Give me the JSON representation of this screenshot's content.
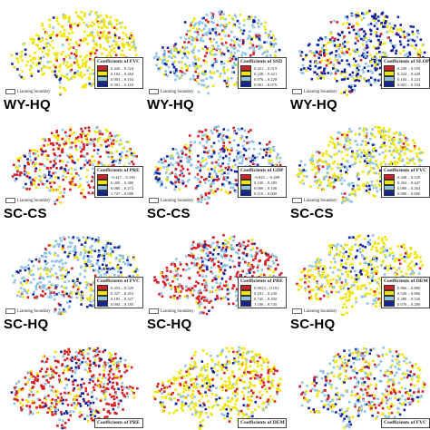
{
  "colors": {
    "red": "#d81f26",
    "yellow": "#f2e600",
    "lightblue": "#8fc3e4",
    "darkblue": "#12239e",
    "background": "#ffffff"
  },
  "boundary_label": "Liaoning boundary",
  "rows": [
    {
      "label": "",
      "panels": [
        {
          "legend_title": "Coefficients of FVC",
          "dominant": "yellow",
          "mix": {
            "red": 0.08,
            "yellow": 0.72,
            "lightblue": 0.12,
            "darkblue": 0.08
          },
          "legend": [
            {
              "color": "red",
              "text": "0.426 – 0.524"
            },
            {
              "color": "yellow",
              "text": "0.104 – 0.264"
            },
            {
              "color": "lightblue",
              "text": "0.003 – 0.104"
            },
            {
              "color": "darkblue",
              "text": "0.301 – 0.103"
            }
          ]
        },
        {
          "legend_title": "Coefficients of SSD",
          "dominant": "lightblue",
          "mix": {
            "red": 0.12,
            "yellow": 0.22,
            "lightblue": 0.48,
            "darkblue": 0.18
          },
          "legend": [
            {
              "color": "red",
              "text": "0.421 – 0.519"
            },
            {
              "color": "yellow",
              "text": "0.228 – 0.421"
            },
            {
              "color": "lightblue",
              "text": "0.076 – 0.228"
            },
            {
              "color": "darkblue",
              "text": "0.001 – 0.076"
            }
          ]
        },
        {
          "legend_title": "Coefficients of SLOP",
          "dominant": "darkblue",
          "mix": {
            "red": 0.06,
            "yellow": 0.22,
            "lightblue": 0.22,
            "darkblue": 0.5
          },
          "legend": [
            {
              "color": "red",
              "text": "0.449 – 0.559"
            },
            {
              "color": "yellow",
              "text": "0.224 – 0.449"
            },
            {
              "color": "lightblue",
              "text": "0.104 – 0.224"
            },
            {
              "color": "darkblue",
              "text": "0.001 – 0.104"
            }
          ]
        }
      ]
    },
    {
      "label": "WY-HQ",
      "panels": [
        {
          "legend_title": "Coefficients of PRE",
          "dominant": "red",
          "mix": {
            "red": 0.42,
            "yellow": 0.3,
            "lightblue": 0.24,
            "darkblue": 0.04
          },
          "legend": [
            {
              "color": "red",
              "text": "-0.447 – 0.190"
            },
            {
              "color": "yellow",
              "text": "0.209 – 0.380"
            },
            {
              "color": "lightblue",
              "text": "0.080 – 0.272"
            },
            {
              "color": "darkblue",
              "text": "1.727 – 0.080"
            }
          ]
        },
        {
          "legend_title": "Coefficients of GDP",
          "dominant": "lightblue",
          "mix": {
            "red": 0.24,
            "yellow": 0.1,
            "lightblue": 0.5,
            "darkblue": 0.16
          },
          "legend": [
            {
              "color": "red",
              "text": "-0.845 – -0.408"
            },
            {
              "color": "yellow",
              "text": "0.100 – 0.285"
            },
            {
              "color": "lightblue",
              "text": "0.000 – 0.100"
            },
            {
              "color": "darkblue",
              "text": "0.110 – 0.000"
            }
          ]
        },
        {
          "legend_title": "Coefficients of FVC",
          "dominant": "yellow",
          "mix": {
            "red": 0.05,
            "yellow": 0.55,
            "lightblue": 0.35,
            "darkblue": 0.05
          },
          "legend": [
            {
              "color": "red",
              "text": "0.448 – 0.529"
            },
            {
              "color": "yellow",
              "text": "0.263 – 0.447"
            },
            {
              "color": "lightblue",
              "text": "0.000 – 0.263"
            },
            {
              "color": "darkblue",
              "text": "0.000 – 0.000"
            }
          ]
        }
      ]
    },
    {
      "label": "SC-CS",
      "panels": [
        {
          "legend_title": "Coefficients of FVC",
          "dominant": "lightblue",
          "mix": {
            "red": 0.08,
            "yellow": 0.22,
            "lightblue": 0.5,
            "darkblue": 0.2
          },
          "legend": [
            {
              "color": "red",
              "text": "0.453 – 0.529"
            },
            {
              "color": "yellow",
              "text": "0.327 – 0.453"
            },
            {
              "color": "lightblue",
              "text": "0.185 – 0.327"
            },
            {
              "color": "darkblue",
              "text": "0.004 – 0.185"
            }
          ]
        },
        {
          "legend_title": "Coefficients of PRE",
          "dominant": "red",
          "mix": {
            "red": 0.5,
            "yellow": 0.1,
            "lightblue": 0.34,
            "darkblue": 0.06
          },
          "legend": [
            {
              "color": "red",
              "text": "0.0023 – 0.181"
            },
            {
              "color": "yellow",
              "text": "0.181 – 0.230"
            },
            {
              "color": "lightblue",
              "text": "0.745 – 0.450"
            },
            {
              "color": "darkblue",
              "text": "1.180 – 0.745"
            }
          ]
        },
        {
          "legend_title": "Coefficients of DEM",
          "dominant": "yellow",
          "mix": {
            "red": 0.08,
            "yellow": 0.66,
            "lightblue": 0.2,
            "darkblue": 0.06
          },
          "legend": [
            {
              "color": "red",
              "text": "0.866 – 0.880"
            },
            {
              "color": "yellow",
              "text": "0.520 – 0.866"
            },
            {
              "color": "lightblue",
              "text": "0.280 – 0.520"
            },
            {
              "color": "darkblue",
              "text": "0.076 – 0.280"
            }
          ]
        }
      ]
    },
    {
      "label": "SC-HQ",
      "panels": [
        {
          "legend_title": "Coefficients of PRE",
          "dominant": "red",
          "mix": {
            "red": 0.5,
            "yellow": 0.2,
            "lightblue": 0.18,
            "darkblue": 0.12
          },
          "legend": []
        },
        {
          "legend_title": "Coefficients of DEM",
          "dominant": "yellow",
          "mix": {
            "red": 0.12,
            "yellow": 0.62,
            "lightblue": 0.16,
            "darkblue": 0.1
          },
          "legend": []
        },
        {
          "legend_title": "Coefficients of FVC",
          "dominant": "lightblue",
          "mix": {
            "red": 0.16,
            "yellow": 0.3,
            "lightblue": 0.4,
            "darkblue": 0.14
          },
          "legend": []
        }
      ]
    }
  ]
}
